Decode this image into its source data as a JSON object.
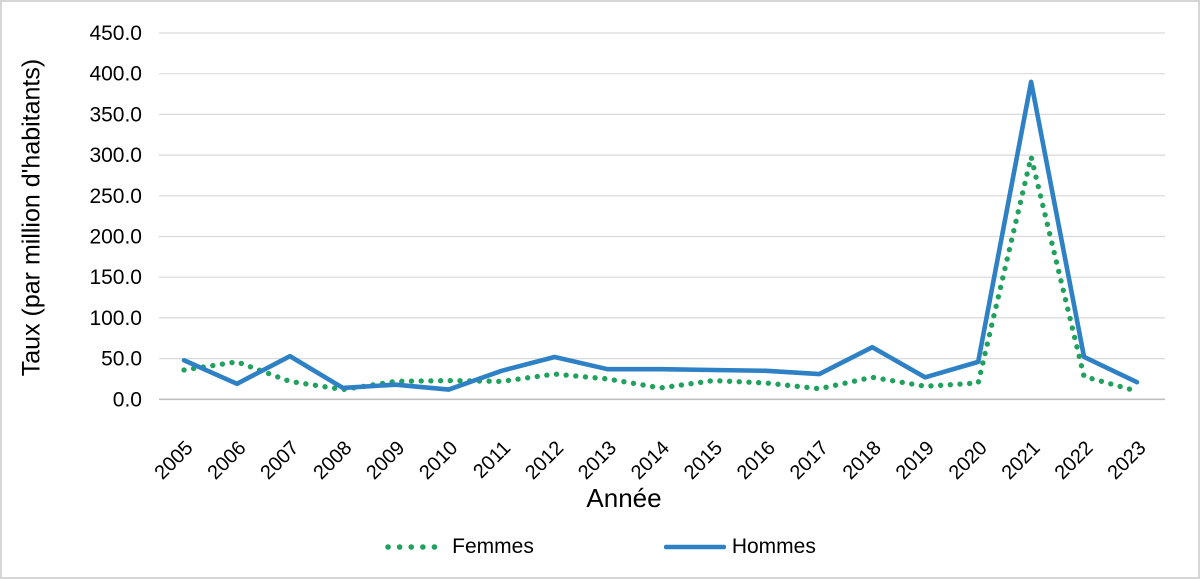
{
  "chart_data": {
    "type": "line",
    "title": "",
    "xlabel": "Année",
    "ylabel": "Taux (par million d'habitants)",
    "categories": [
      "2005",
      "2006",
      "2007",
      "2008",
      "2009",
      "2010",
      "2011",
      "2012",
      "2013",
      "2014",
      "2015",
      "2016",
      "2017",
      "2018",
      "2019",
      "2020",
      "2021",
      "2022",
      "2023"
    ],
    "series": [
      {
        "name": "Femmes",
        "style": "dotted",
        "color": "#21a15e",
        "values": [
          36,
          46,
          22,
          12,
          22,
          23,
          22,
          31,
          25,
          14,
          23,
          20,
          13,
          27,
          16,
          20,
          298,
          28,
          10
        ]
      },
      {
        "name": "Hommes",
        "style": "solid",
        "color": "#2e81c4",
        "values": [
          48,
          19,
          53,
          14,
          18,
          12,
          35,
          52,
          37,
          37,
          36,
          35,
          31,
          64,
          27,
          46,
          390,
          52,
          21
        ]
      }
    ],
    "ylim": [
      0,
      450
    ],
    "ytick_step": 50,
    "y_tick_labels": [
      "0.0",
      "50.0",
      "100.0",
      "150.0",
      "200.0",
      "250.0",
      "300.0",
      "350.0",
      "400.0",
      "450.0"
    ],
    "grid": true,
    "gridline_color": "#d9d9d9",
    "axis_line_color": "#bfbfbf",
    "tick_label_color": "#000000",
    "legend_position": "bottom"
  }
}
